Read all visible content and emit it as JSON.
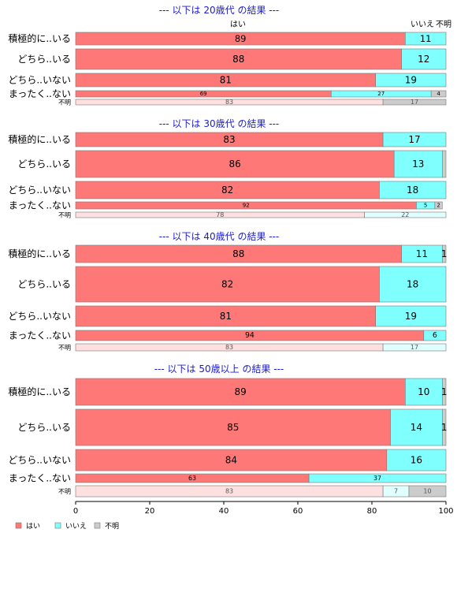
{
  "chart_data": {
    "type": "bar",
    "orientation": "horizontal",
    "stacked": true,
    "xlim": [
      0,
      100
    ],
    "x_ticks": [
      "0",
      "20",
      "40",
      "60",
      "80",
      "100"
    ],
    "legend": {
      "placement": "bottom-left",
      "entries": [
        {
          "name": "はい",
          "color": "#ff7878"
        },
        {
          "name": "いいえ",
          "color": "#80ffff"
        },
        {
          "name": "不明",
          "color": "#cccccc"
        }
      ]
    },
    "column_headers": [
      "はい",
      "いいえ",
      "不明"
    ],
    "categories": [
      "積極的に..いる",
      "どちら..いる",
      "どちら..いない",
      "まったく..ない",
      "不明"
    ],
    "panels": [
      {
        "title": "--- 以下は 20歳代 の結果 ---",
        "rows": [
          {
            "label": "積極的に..いる",
            "values": [
              89,
              11,
              0
            ],
            "labels": [
              "89",
              "11",
              ""
            ]
          },
          {
            "label": "どちら..いる",
            "values": [
              88,
              12,
              0
            ],
            "labels": [
              "88",
              "12",
              ""
            ]
          },
          {
            "label": "どちら..いない",
            "values": [
              81,
              19,
              0
            ],
            "labels": [
              "81",
              "19",
              ""
            ]
          },
          {
            "label": "まったく..ない",
            "values": [
              69,
              27,
              4
            ],
            "labels": [
              "69",
              "27",
              "4"
            ]
          },
          {
            "label": "不明",
            "values": [
              83,
              0,
              17
            ],
            "labels": [
              "83",
              "",
              "17"
            ]
          }
        ]
      },
      {
        "title": "--- 以下は 30歳代 の結果 ---",
        "rows": [
          {
            "label": "積極的に..いる",
            "values": [
              83,
              17,
              0
            ],
            "labels": [
              "83",
              "17",
              ""
            ]
          },
          {
            "label": "どちら..いる",
            "values": [
              86,
              13,
              1
            ],
            "labels": [
              "86",
              "13",
              ""
            ]
          },
          {
            "label": "どちら..いない",
            "values": [
              82,
              18,
              0
            ],
            "labels": [
              "82",
              "18",
              ""
            ]
          },
          {
            "label": "まったく..ない",
            "values": [
              92,
              5,
              2
            ],
            "labels": [
              "92",
              "5",
              "2"
            ]
          },
          {
            "label": "不明",
            "values": [
              78,
              22,
              0
            ],
            "labels": [
              "78",
              "22",
              ""
            ]
          }
        ]
      },
      {
        "title": "--- 以下は 40歳代 の結果 ---",
        "rows": [
          {
            "label": "積極的に..いる",
            "values": [
              88,
              11,
              1
            ],
            "labels": [
              "88",
              "11",
              "1"
            ]
          },
          {
            "label": "どちら..いる",
            "values": [
              82,
              18,
              0
            ],
            "labels": [
              "82",
              "18",
              ""
            ]
          },
          {
            "label": "どちら..いない",
            "values": [
              81,
              19,
              0
            ],
            "labels": [
              "81",
              "19",
              ""
            ]
          },
          {
            "label": "まったく..ない",
            "values": [
              94,
              6,
              0
            ],
            "labels": [
              "94",
              "6",
              ""
            ]
          },
          {
            "label": "不明",
            "values": [
              83,
              17,
              0
            ],
            "labels": [
              "83",
              "17",
              ""
            ]
          }
        ]
      },
      {
        "title": "--- 以下は 50歳以上 の結果 ---",
        "rows": [
          {
            "label": "積極的に..いる",
            "values": [
              89,
              10,
              1
            ],
            "labels": [
              "89",
              "10",
              "1"
            ]
          },
          {
            "label": "どちら..いる",
            "values": [
              85,
              14,
              1
            ],
            "labels": [
              "85",
              "14",
              "1"
            ]
          },
          {
            "label": "どちら..いない",
            "values": [
              84,
              16,
              0
            ],
            "labels": [
              "84",
              "16",
              ""
            ]
          },
          {
            "label": "まったく..ない",
            "values": [
              63,
              37,
              0
            ],
            "labels": [
              "63",
              "37",
              ""
            ]
          },
          {
            "label": "不明",
            "values": [
              83,
              7,
              10
            ],
            "labels": [
              "83",
              "7",
              "10"
            ]
          }
        ]
      }
    ]
  }
}
